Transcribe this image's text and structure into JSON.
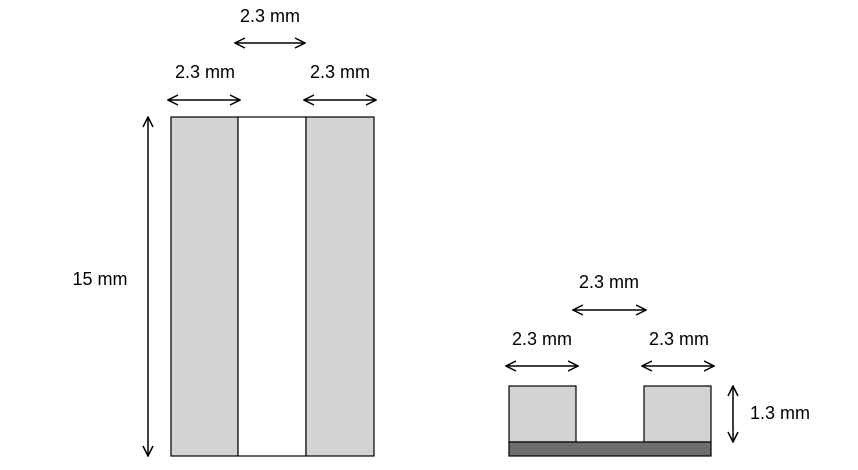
{
  "top_view": {
    "gap_label": "2.3 mm",
    "left_width_label": "2.3 mm",
    "right_width_label": "2.3 mm",
    "length_label": "15 mm"
  },
  "cross_section": {
    "gap_label": "2.3 mm",
    "left_width_label": "2.3 mm",
    "right_width_label": "2.3 mm",
    "height_label": "1.3 mm"
  }
}
